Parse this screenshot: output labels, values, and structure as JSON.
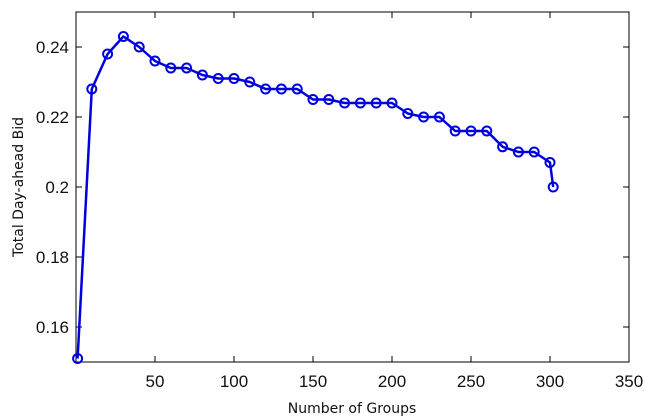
{
  "chart_data": {
    "type": "line",
    "title": "",
    "xlabel": "Number of Groups",
    "ylabel": "Total Day-ahead Bid",
    "xlim": [
      0,
      350
    ],
    "ylim": [
      0.15,
      0.25
    ],
    "x_ticks": [
      50,
      100,
      150,
      200,
      250,
      300,
      350
    ],
    "y_ticks": [
      0.16,
      0.18,
      0.2,
      0.22,
      0.24
    ],
    "x_tick_labels": [
      "50",
      "100",
      "150",
      "200",
      "250",
      "300",
      "350"
    ],
    "y_tick_labels": [
      "0.16",
      "0.18",
      "0.2",
      "0.22",
      "0.24"
    ],
    "grid": false,
    "legend": "none",
    "series": [
      {
        "color": "#0000dd",
        "marker": "circle",
        "x": [
          1,
          10,
          20,
          30,
          40,
          50,
          60,
          70,
          80,
          90,
          100,
          110,
          120,
          130,
          140,
          150,
          160,
          170,
          180,
          190,
          200,
          210,
          220,
          230,
          240,
          250,
          260,
          270,
          280,
          290,
          300,
          302
        ],
        "y": [
          0.151,
          0.228,
          0.238,
          0.243,
          0.24,
          0.236,
          0.234,
          0.234,
          0.232,
          0.231,
          0.231,
          0.23,
          0.228,
          0.228,
          0.228,
          0.225,
          0.225,
          0.224,
          0.224,
          0.224,
          0.224,
          0.221,
          0.22,
          0.22,
          0.216,
          0.216,
          0.216,
          0.2115,
          0.21,
          0.21,
          0.207,
          0.2
        ]
      }
    ]
  }
}
